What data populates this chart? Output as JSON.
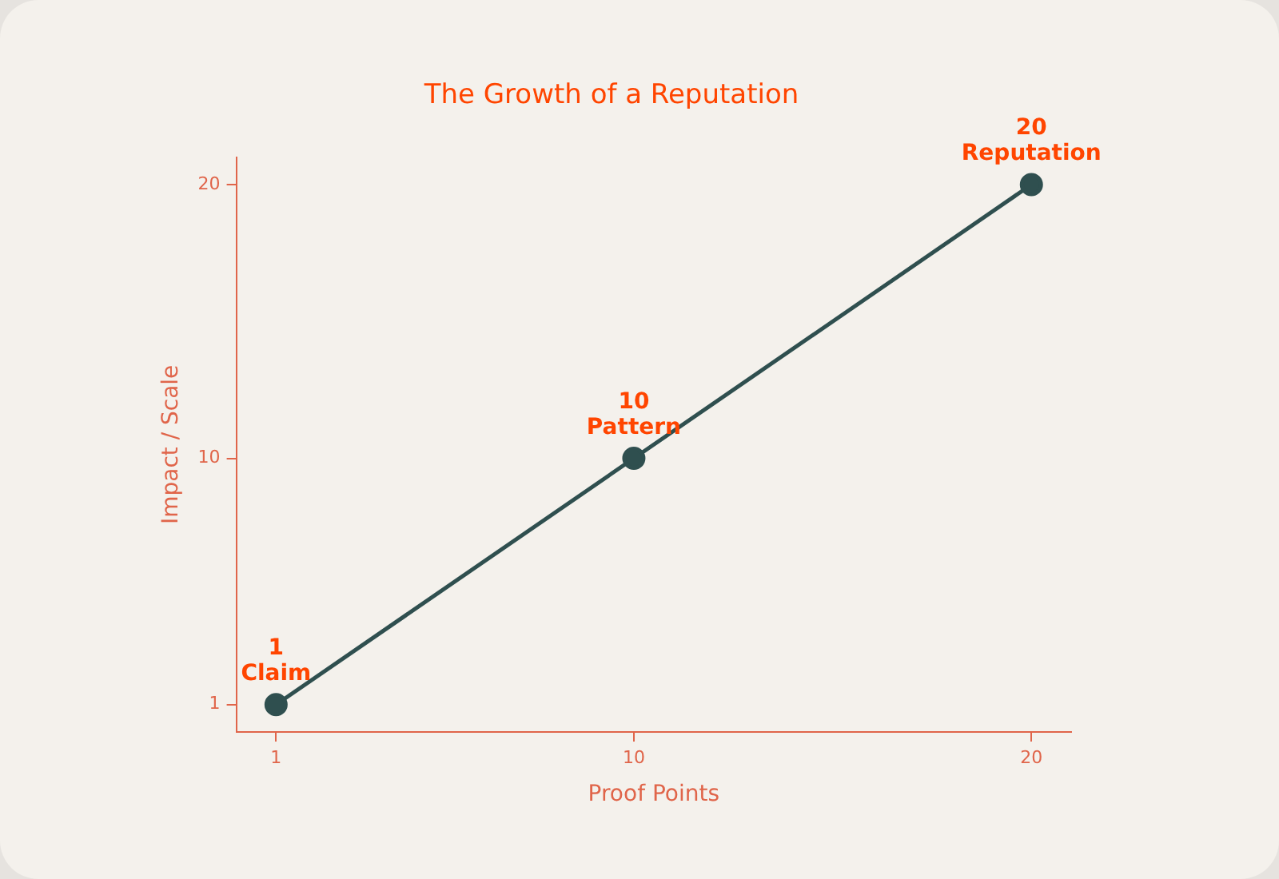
{
  "chart_data": {
    "type": "line",
    "title": "The Growth of a Reputation",
    "xlabel": "Proof Points",
    "ylabel": "Impact / Scale",
    "x": [
      1,
      10,
      20
    ],
    "series": [
      {
        "color": "#2f4f4f",
        "values": [
          1,
          10,
          20
        ]
      }
    ],
    "xlim": [
      0,
      21
    ],
    "xticks": [
      1,
      10,
      20
    ],
    "ylim": [
      0,
      21
    ],
    "yticks": [
      1,
      10,
      20
    ],
    "grid": false,
    "legend": false,
    "marker": "circle",
    "line_style": "solid",
    "annotations": [
      {
        "text": "1\nClaim",
        "x": 1,
        "y": 1
      },
      {
        "text": "10\nPattern",
        "x": 10,
        "y": 10
      },
      {
        "text": "20\nReputation",
        "x": 20,
        "y": 20
      }
    ]
  }
}
